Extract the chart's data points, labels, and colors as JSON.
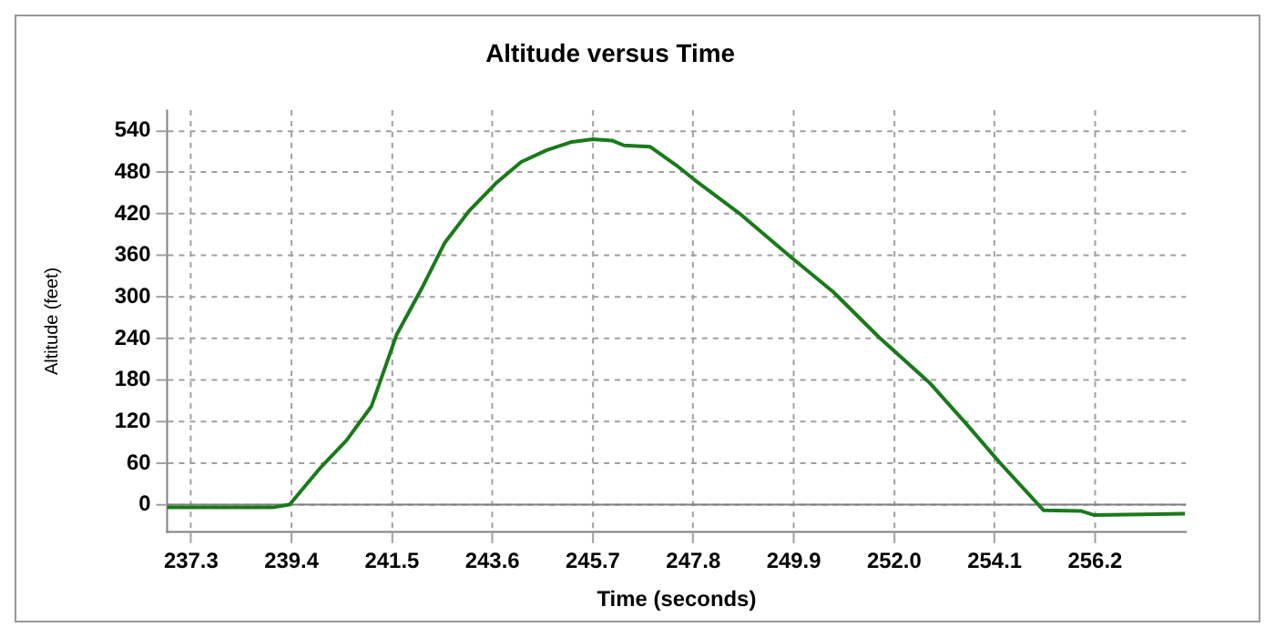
{
  "chart_data": {
    "type": "line",
    "title": "Altitude versus Time",
    "xlabel": "Time (seconds)",
    "ylabel": "Altitude (feet)",
    "x": [
      236.8,
      239.0,
      239.36,
      240.0,
      240.55,
      241.07,
      241.6,
      242.15,
      242.6,
      243.12,
      243.67,
      244.2,
      244.73,
      245.26,
      245.7,
      246.1,
      246.35,
      246.9,
      247.43,
      247.83,
      248.76,
      249.8,
      250.73,
      251.68,
      252.74,
      253.53,
      254.19,
      255.12,
      255.9,
      256.17,
      258.08
    ],
    "series": [
      {
        "color": "#1a7a1a",
        "values": [
          -4,
          -4,
          0,
          53,
          93,
          142,
          246,
          316,
          378,
          425,
          464,
          495,
          512,
          524,
          528,
          526,
          519,
          517,
          491,
          469,
          421,
          360,
          307,
          242,
          176,
          115,
          62,
          -8,
          -9,
          -15,
          -13
        ]
      }
    ],
    "xlim": [
      236.8,
      258.1
    ],
    "ylim": [
      -40,
      570
    ],
    "xticks": [
      237.3,
      239.4,
      241.5,
      243.6,
      245.7,
      247.8,
      249.9,
      {
        "value": 252,
        "label": "252.0"
      },
      254.1,
      256.2
    ],
    "yticks": [
      0,
      60,
      120,
      180,
      240,
      300,
      360,
      420,
      480,
      540
    ],
    "ref_lines": [
      {
        "axis": "y",
        "value": 0,
        "color": "#808080"
      }
    ],
    "grid": true,
    "legend": false,
    "marker": "none",
    "line_style": "solid"
  }
}
